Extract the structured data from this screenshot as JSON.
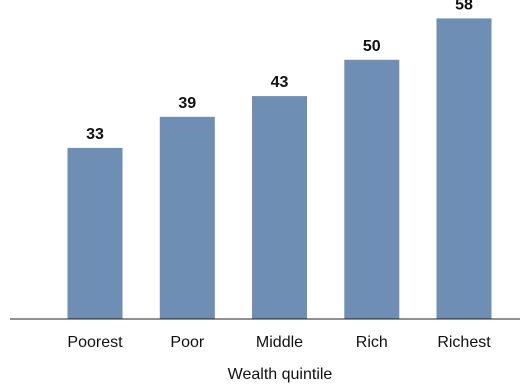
{
  "chart_data": {
    "type": "bar",
    "categories": [
      "Poorest",
      "Poor",
      "Middle",
      "Rich",
      "Richest"
    ],
    "values": [
      33,
      39,
      43,
      50,
      58
    ],
    "title": "",
    "xlabel": "Wealth quintile",
    "ylabel": "",
    "ylim": [
      0,
      60
    ],
    "grid": false,
    "legend": "none",
    "bar_color": "#6e8fb3",
    "data_labels": true
  }
}
